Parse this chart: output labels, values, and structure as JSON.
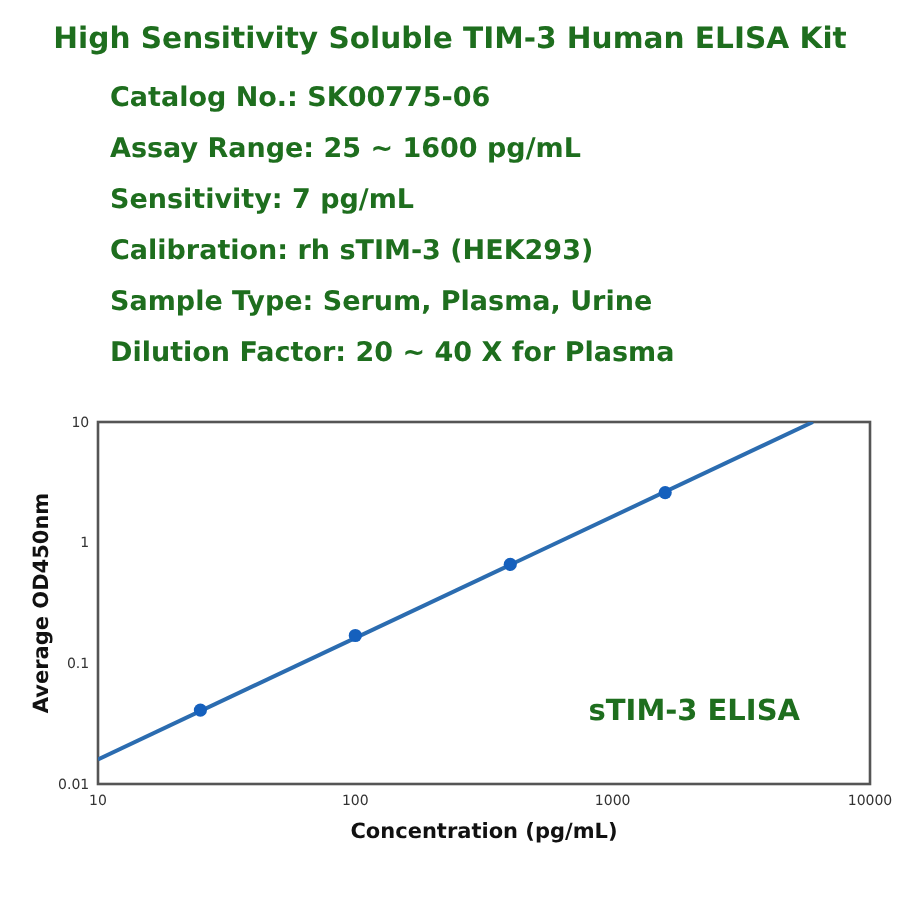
{
  "chart_data": {
    "type": "scatter",
    "title": "High Sensitivity Soluble TIM-3 Human ELISA Kit",
    "annotations": [
      "Catalog No.: SK00775-06",
      "Assay Range: 25 ~ 1600 pg/mL",
      "Sensitivity: 7 pg/mL",
      "Calibration: rh sTIM-3 (HEK293)",
      "Sample Type: Serum, Plasma, Urine",
      "Dilution Factor: 20 ~ 40 X for Plasma",
      "sTIM-3 ELISA"
    ],
    "xlabel": "Concentration (pg/mL)",
    "ylabel": "Average OD450nm",
    "log": "xy",
    "grid": false,
    "marker": "circle",
    "xlim": [
      10,
      10000
    ],
    "xticks": [
      10,
      100,
      1000,
      10000
    ],
    "ylim": [
      0.01,
      10
    ],
    "yticks": [
      0.01,
      0.1,
      1,
      10
    ],
    "series": [
      {
        "type": "line",
        "x": [
          10,
          6000
        ],
        "values": [
          0.016,
          10
        ],
        "color": "#2b6cb0",
        "marker": "none"
      },
      {
        "x": [
          25,
          100,
          400,
          1600
        ],
        "values": [
          0.041,
          0.17,
          0.66,
          2.6
        ],
        "color": "#1560bd"
      }
    ]
  }
}
